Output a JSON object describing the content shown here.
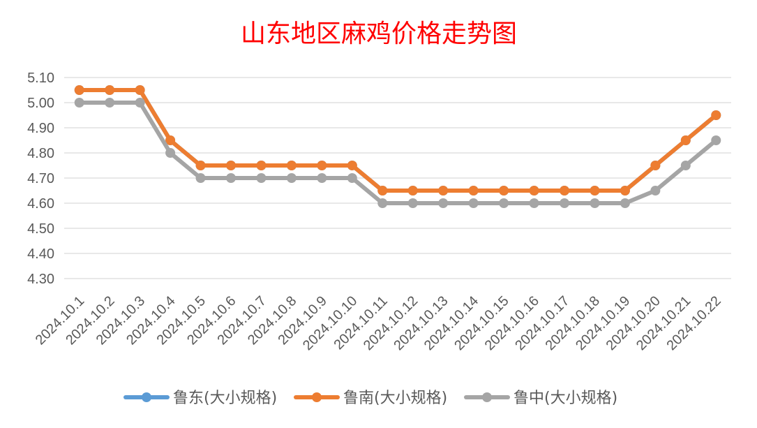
{
  "chart_data": {
    "type": "line",
    "title": "山东地区麻鸡价格走势图",
    "xlabel": "",
    "ylabel": "",
    "categories": [
      "2024.10.1",
      "2024.10.2",
      "2024.10.3",
      "2024.10.4",
      "2024.10.5",
      "2024.10.6",
      "2024.10.7",
      "2024.10.8",
      "2024.10.9",
      "2024.10.10",
      "2024.10.11",
      "2024.10.12",
      "2024.10.13",
      "2024.10.14",
      "2024.10.15",
      "2024.10.16",
      "2024.10.17",
      "2024.10.18",
      "2024.10.19",
      "2024.10.20",
      "2024.10.21",
      "2024.10.22"
    ],
    "y_ticks": [
      "5.10",
      "5.00",
      "4.90",
      "4.80",
      "4.70",
      "4.60",
      "4.50",
      "4.40",
      "4.30"
    ],
    "ylim": [
      4.3,
      5.1
    ],
    "grid": true,
    "legend_position": "bottom",
    "series": [
      {
        "name": "鲁东(大小规格)",
        "color": "#5b9bd5",
        "values": [
          5.05,
          5.05,
          5.05,
          4.85,
          4.75,
          4.75,
          4.75,
          4.75,
          4.75,
          4.75,
          4.65,
          4.65,
          4.65,
          4.65,
          4.65,
          4.65,
          4.65,
          4.65,
          4.65,
          4.75,
          4.85,
          4.95
        ]
      },
      {
        "name": "鲁南(大小规格)",
        "color": "#ed7d31",
        "values": [
          5.05,
          5.05,
          5.05,
          4.85,
          4.75,
          4.75,
          4.75,
          4.75,
          4.75,
          4.75,
          4.65,
          4.65,
          4.65,
          4.65,
          4.65,
          4.65,
          4.65,
          4.65,
          4.65,
          4.75,
          4.85,
          4.95
        ]
      },
      {
        "name": "鲁中(大小规格)",
        "color": "#a5a5a5",
        "values": [
          5.0,
          5.0,
          5.0,
          4.8,
          4.7,
          4.7,
          4.7,
          4.7,
          4.7,
          4.7,
          4.6,
          4.6,
          4.6,
          4.6,
          4.6,
          4.6,
          4.6,
          4.6,
          4.6,
          4.65,
          4.75,
          4.85
        ]
      }
    ],
    "title_color": "#ff0000",
    "grid_color": "#d9d9d9",
    "text_color": "#595959"
  }
}
